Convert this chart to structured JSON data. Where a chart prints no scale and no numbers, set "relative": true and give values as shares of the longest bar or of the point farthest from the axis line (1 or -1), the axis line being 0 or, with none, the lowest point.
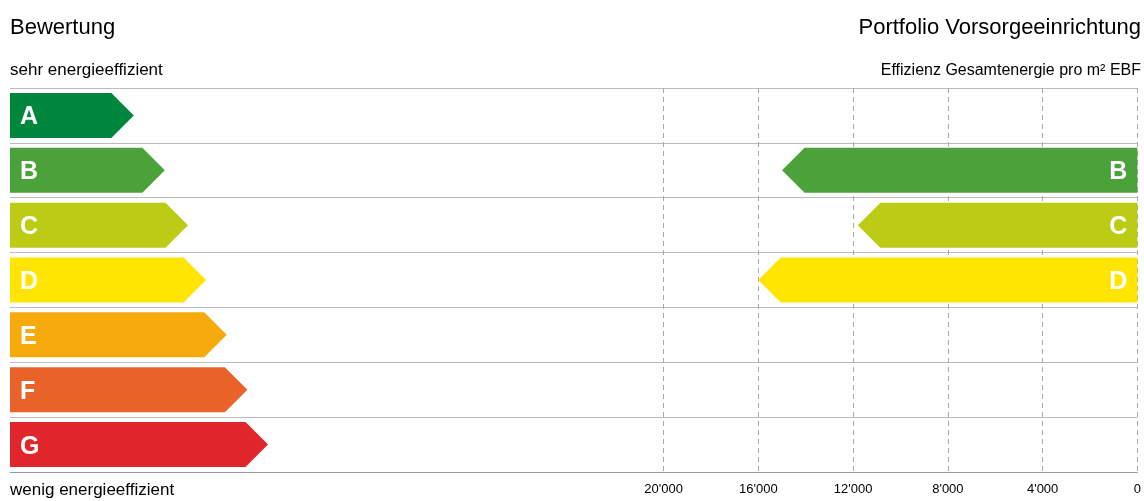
{
  "chart_data": [
    {
      "type": "bar",
      "orientation": "horizontal",
      "relative": true,
      "title": "Bewertung",
      "annotations": [
        "sehr energieeffizient",
        "wenig energieeffizient"
      ],
      "categories": [
        "A",
        "B",
        "C",
        "D",
        "E",
        "F",
        "G"
      ],
      "values": [
        0.48,
        0.6,
        0.69,
        0.76,
        0.84,
        0.92,
        1
      ],
      "colors": [
        "#00873e",
        "#4ca23a",
        "#bccb14",
        "#ffe500",
        "#f6aa0c",
        "#e8622a",
        "#e0262b"
      ],
      "grid": "y"
    },
    {
      "type": "bar",
      "orientation": "horizontal",
      "title": "Portfolio Vorsorgeeinrichtung",
      "xlabel": "Effizienz Gesamtenergie pro m² EBF",
      "categories": [
        null,
        null,
        null,
        null,
        null,
        null,
        null
      ],
      "values": [
        null,
        15000,
        11800,
        16000,
        null,
        null,
        null
      ],
      "value_labels": [
        null,
        "B",
        "C",
        "D",
        null,
        null,
        null
      ],
      "colors": [
        null,
        "#4ca23a",
        "#bccb14",
        "#ffe500",
        null,
        null,
        null
      ],
      "xlim": [
        36700,
        0
      ],
      "xticks": [
        {
          "value": 20000,
          "label": "20'000"
        },
        {
          "value": 16000,
          "label": "16'000"
        },
        {
          "value": 12000,
          "label": "12'000"
        },
        {
          "value": 8000,
          "label": "8'000"
        },
        {
          "value": 4000,
          "label": "4'000"
        },
        0
      ],
      "tick_labels": "x",
      "grid": true
    }
  ]
}
